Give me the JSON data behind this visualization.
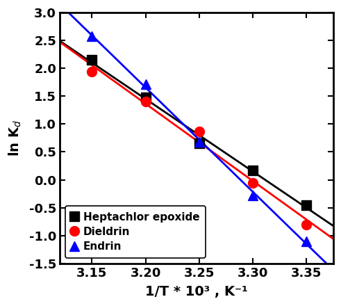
{
  "title": "",
  "xlabel": "1/T * 10³ , K⁻¹",
  "ylabel": "ln K⁤",
  "xlim": [
    3.12,
    3.375
  ],
  "ylim": [
    -1.5,
    3.0
  ],
  "xticks": [
    3.15,
    3.2,
    3.25,
    3.3,
    3.35
  ],
  "yticks": [
    -1.5,
    -1.0,
    -0.5,
    0.0,
    0.5,
    1.0,
    1.5,
    2.0,
    2.5,
    3.0
  ],
  "heptachlor": {
    "x": [
      3.15,
      3.2,
      3.25,
      3.3,
      3.35
    ],
    "y": [
      2.15,
      1.48,
      0.65,
      0.17,
      -0.45
    ],
    "color": "#000000",
    "marker": "s",
    "label": "Heptachlor epoxide"
  },
  "dieldrin": {
    "x": [
      3.15,
      3.2,
      3.25,
      3.3,
      3.35
    ],
    "y": [
      1.94,
      1.4,
      0.87,
      -0.05,
      -0.8
    ],
    "color": "#ff0000",
    "marker": "o",
    "label": "Dieldrin"
  },
  "endrin": {
    "x": [
      3.15,
      3.2,
      3.25,
      3.3,
      3.35
    ],
    "y": [
      2.58,
      1.72,
      0.68,
      -0.28,
      -1.1
    ],
    "color": "#0000ff",
    "marker": "^",
    "label": "Endrin"
  },
  "background_color": "#ffffff",
  "tick_fontsize": 13,
  "label_fontsize": 14,
  "legend_fontsize": 11,
  "marker_size": 10,
  "line_width": 2.0
}
